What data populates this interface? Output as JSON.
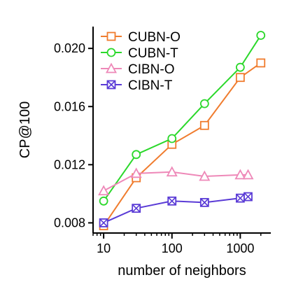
{
  "chart_data": {
    "type": "line",
    "xlabel": "number of neighbors",
    "ylabel": "CP@100",
    "xscale": "log",
    "xlim": [
      7,
      2800
    ],
    "ylim": [
      0.0073,
      0.0215
    ],
    "x_ticks": [
      10,
      100,
      1000
    ],
    "x_tick_labels": [
      "10",
      "100",
      "1000"
    ],
    "y_ticks": [
      0.008,
      0.012,
      0.016,
      0.02
    ],
    "y_tick_labels": [
      "0.008",
      "0.012",
      "0.016",
      "0.020"
    ],
    "legend_position": "top-left",
    "series": [
      {
        "name": "CUBN-O",
        "color": "#f07c2e",
        "marker": "square",
        "x": [
          10,
          30,
          100,
          300,
          1000,
          2000
        ],
        "y": [
          0.0078,
          0.0111,
          0.0134,
          0.0147,
          0.018,
          0.019
        ]
      },
      {
        "name": "CUBN-T",
        "color": "#2bd82b",
        "marker": "circle",
        "x": [
          10,
          30,
          100,
          300,
          1000,
          2000
        ],
        "y": [
          0.0095,
          0.0127,
          0.0138,
          0.0162,
          0.0187,
          0.0209
        ]
      },
      {
        "name": "CIBN-O",
        "color": "#ee88b8",
        "marker": "triangle",
        "x": [
          10,
          30,
          100,
          300,
          1000,
          1300
        ],
        "y": [
          0.0102,
          0.0114,
          0.0115,
          0.0112,
          0.0113,
          0.0113
        ]
      },
      {
        "name": "CIBN-T",
        "color": "#5a3bd6",
        "marker": "boxx",
        "x": [
          10,
          30,
          100,
          300,
          1000,
          1300
        ],
        "y": [
          0.008,
          0.009,
          0.0095,
          0.0094,
          0.0097,
          0.0098
        ]
      }
    ]
  }
}
